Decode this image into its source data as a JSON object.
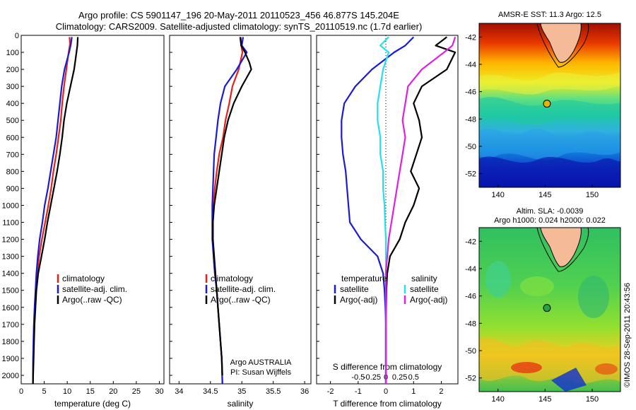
{
  "title_line1": "Argo profile: CS 5901147_196 20-May-2011 20110523_456 46.877S 145.204E",
  "title_line2": "Climatology: CARS2009. Satellite-adjusted climatology: synTS_20110519.nc (1.7d earlier)",
  "side_stamp": "©IMOS 28-Sep-2011 20:43:56",
  "colors": {
    "red": "#e8201a",
    "blue": "#1a1ad8",
    "black": "#000000",
    "cyan": "#22e0f0",
    "magenta": "#e020e0"
  },
  "chart_data": [
    {
      "type": "line",
      "xlabel": "temperature (deg C)",
      "xlim": [
        0,
        31
      ],
      "xticks": [
        0,
        5,
        10,
        15,
        20,
        25,
        30
      ],
      "ylim": [
        0,
        2050
      ],
      "yticks": [
        0,
        100,
        200,
        300,
        400,
        500,
        600,
        700,
        800,
        900,
        1000,
        1100,
        1200,
        1300,
        1400,
        1500,
        1600,
        1700,
        1800,
        1900,
        2000
      ],
      "legend": [
        "climatology",
        "satellite-adj. clim.",
        "Argo(..raw -QC)"
      ],
      "series": [
        {
          "name": "climatology",
          "color": "red",
          "x": [
            10.5,
            10.6,
            10.3,
            9.8,
            9.3,
            8.9,
            8.6,
            8.1,
            7.6,
            7.0,
            6.5,
            5.9,
            5.2,
            4.5,
            3.9,
            3.5,
            3.2,
            3.0,
            2.8,
            2.7,
            2.6,
            2.55
          ],
          "y": [
            10,
            50,
            100,
            200,
            300,
            400,
            500,
            600,
            700,
            800,
            900,
            1000,
            1100,
            1200,
            1300,
            1400,
            1500,
            1600,
            1700,
            1800,
            1900,
            2050
          ]
        },
        {
          "name": "satellite-adj. clim.",
          "color": "blue",
          "x": [
            11.0,
            10.8,
            10.4,
            9.4,
            8.8,
            8.4,
            8.0,
            7.6,
            7.0,
            6.4,
            5.8,
            5.1,
            4.6,
            4.0,
            3.6,
            3.3,
            3.1,
            2.9,
            2.75,
            2.65,
            2.6,
            2.55
          ],
          "y": [
            10,
            50,
            100,
            200,
            300,
            400,
            500,
            600,
            700,
            800,
            900,
            1000,
            1100,
            1200,
            1300,
            1400,
            1500,
            1600,
            1700,
            1800,
            1900,
            2050
          ]
        },
        {
          "name": "Argo(..raw -QC)",
          "color": "black",
          "x": [
            12.3,
            12.2,
            12.0,
            11.8,
            11.5,
            10.7,
            9.9,
            9.3,
            8.9,
            8.4,
            7.8,
            7.1,
            6.4,
            5.7,
            5.1,
            4.4,
            3.7,
            3.3,
            3.1,
            2.9,
            2.8,
            2.7,
            2.6,
            2.55
          ],
          "y": [
            10,
            60,
            100,
            140,
            200,
            300,
            400,
            500,
            600,
            700,
            800,
            900,
            1000,
            1100,
            1200,
            1300,
            1400,
            1500,
            1600,
            1700,
            1800,
            1900,
            2000,
            2050
          ]
        }
      ]
    },
    {
      "type": "line",
      "xlabel": "salinity",
      "xlim": [
        33.85,
        36.1
      ],
      "xticks": [
        34,
        34.5,
        35,
        35.5,
        36
      ],
      "xtick_labels": [
        "34",
        "34.5",
        "35",
        "35.5",
        "36"
      ],
      "ylim": [
        0,
        2050
      ],
      "legend": [
        "climatology",
        "satellite-adj. clim.",
        "Argo(..raw -QC)"
      ],
      "annotation": [
        "Argo AUSTRALIA",
        "PI: Susan Wijffels"
      ],
      "series": [
        {
          "name": "climatology",
          "color": "red",
          "x": [
            34.97,
            34.99,
            35.01,
            34.95,
            34.85,
            34.8,
            34.74,
            34.7,
            34.64,
            34.6,
            34.57,
            34.55,
            34.54,
            34.54,
            34.55,
            34.57,
            34.6,
            34.62,
            34.64,
            34.66,
            34.68,
            34.69
          ],
          "y": [
            10,
            60,
            100,
            200,
            300,
            400,
            500,
            600,
            700,
            800,
            900,
            1000,
            1100,
            1200,
            1300,
            1400,
            1500,
            1600,
            1700,
            1800,
            1900,
            2050
          ]
        },
        {
          "name": "satellite-adj. clim.",
          "color": "blue",
          "x": [
            35.02,
            35.0,
            35.08,
            34.92,
            34.73,
            34.66,
            34.62,
            34.59,
            34.56,
            34.55,
            34.54,
            34.53,
            34.53,
            34.53,
            34.55,
            34.57,
            34.6,
            34.62,
            34.64,
            34.66,
            34.68,
            34.69
          ],
          "y": [
            10,
            60,
            100,
            200,
            300,
            400,
            500,
            600,
            700,
            800,
            900,
            1000,
            1100,
            1200,
            1300,
            1400,
            1500,
            1600,
            1700,
            1800,
            1900,
            2050
          ]
        },
        {
          "name": "Argo(..raw -QC)",
          "color": "black",
          "x": [
            34.98,
            34.99,
            35.05,
            35.12,
            35.15,
            35.0,
            34.87,
            34.78,
            34.72,
            34.68,
            34.64,
            34.6,
            34.56,
            34.54,
            34.54,
            34.56,
            34.58,
            34.6,
            34.62,
            34.64,
            34.66,
            34.68,
            34.69
          ],
          "y": [
            10,
            60,
            100,
            160,
            200,
            300,
            400,
            500,
            600,
            700,
            800,
            900,
            1000,
            1100,
            1200,
            1300,
            1400,
            1500,
            1600,
            1700,
            1800,
            1900,
            2000
          ]
        }
      ]
    },
    {
      "type": "line",
      "xlabel": "T difference from climatology",
      "xlabel_top": "S difference from climatology",
      "xlim": [
        -2.5,
        2.6
      ],
      "xticks": [
        -2,
        -1,
        0,
        1,
        2
      ],
      "xtick_labels": [
        "-2",
        "-1",
        "0",
        "1",
        "2"
      ],
      "xticks_top": [
        -1,
        -0.5,
        0,
        0.5,
        1
      ],
      "xtick_labels_top": [
        "-0.5",
        "-0.25",
        "0",
        "0.25",
        "0.5"
      ],
      "ylim": [
        0,
        2050
      ],
      "legend_title_left": "temperature",
      "legend_title_right": "salinity",
      "legend": [
        "satellite",
        "Argo(-adj)",
        "satellite",
        "Argo(-adj)"
      ],
      "series": [
        {
          "name": "satellite",
          "color": "blue",
          "x": [
            1.0,
            0.7,
            0.3,
            -0.5,
            -1.1,
            -1.5,
            -1.6,
            -1.6,
            -1.55,
            -1.45,
            -1.4,
            -1.35,
            -1.3,
            -0.9,
            -0.3,
            -0.1,
            -0.05,
            -0.02,
            0,
            0,
            0,
            0
          ],
          "y": [
            10,
            60,
            100,
            200,
            300,
            400,
            500,
            600,
            700,
            800,
            900,
            1000,
            1100,
            1200,
            1300,
            1400,
            1500,
            1600,
            1700,
            1800,
            1900,
            2050
          ]
        },
        {
          "name": "Argo(-adj)",
          "color": "black",
          "x": [
            2.2,
            1.8,
            2.5,
            2.2,
            1.3,
            1.0,
            1.2,
            1.3,
            1.1,
            0.9,
            1.2,
            1.0,
            0.7,
            0.5,
            0.15,
            0.05,
            0.02,
            0.01,
            0,
            0,
            0,
            0
          ],
          "y": [
            10,
            60,
            100,
            200,
            300,
            400,
            500,
            600,
            700,
            800,
            900,
            1000,
            1100,
            1200,
            1300,
            1400,
            1500,
            1600,
            1700,
            1800,
            1900,
            2050
          ]
        },
        {
          "name": "satellite",
          "color": "cyan",
          "x": [
            0.1,
            -0.2,
            0.1,
            -0.1,
            -0.2,
            -0.3,
            -0.3,
            -0.2,
            -0.2,
            -0.1,
            -0.1,
            -0.05,
            -0.03,
            0,
            0,
            0,
            0,
            0,
            0,
            0
          ],
          "y": [
            10,
            60,
            100,
            200,
            300,
            400,
            500,
            600,
            700,
            800,
            900,
            1000,
            1100,
            1200,
            1300,
            1400,
            1500,
            1600,
            1700,
            2050
          ]
        },
        {
          "name": "Argo(-adj)",
          "color": "magenta",
          "x": [
            2.5,
            2.4,
            2.1,
            1.3,
            0.8,
            0.7,
            0.6,
            0.7,
            0.6,
            0.5,
            0.4,
            0.3,
            0.2,
            0.1,
            0.05,
            0,
            0,
            0,
            0,
            0
          ],
          "y": [
            10,
            60,
            100,
            200,
            300,
            400,
            500,
            600,
            700,
            800,
            900,
            1000,
            1100,
            1200,
            1300,
            1400,
            1500,
            1600,
            1700,
            2050
          ]
        }
      ]
    },
    {
      "type": "heatmap",
      "title": "AMSR-E SST: 11.3 Argo: 12.5",
      "xlim": [
        138,
        153
      ],
      "ylim": [
        -53,
        -41
      ],
      "xticks": [
        140,
        145,
        150
      ],
      "yticks": [
        -42,
        -44,
        -46,
        -48,
        -50,
        -52
      ],
      "marker": {
        "lon": 145.2,
        "lat": -46.88,
        "color": "#e8b400"
      }
    },
    {
      "type": "heatmap",
      "title": "Altim. SLA: -0.0039",
      "subtitle": "Argo h1000: 0.024 h2000: 0.022",
      "xlim": [
        138,
        153
      ],
      "ylim": [
        -53,
        -41
      ],
      "xticks": [
        140,
        145,
        150
      ],
      "yticks": [
        -42,
        -44,
        -46,
        -48,
        -50,
        -52
      ],
      "marker": {
        "lon": 145.2,
        "lat": -46.88,
        "color": "#22a53a"
      }
    }
  ]
}
